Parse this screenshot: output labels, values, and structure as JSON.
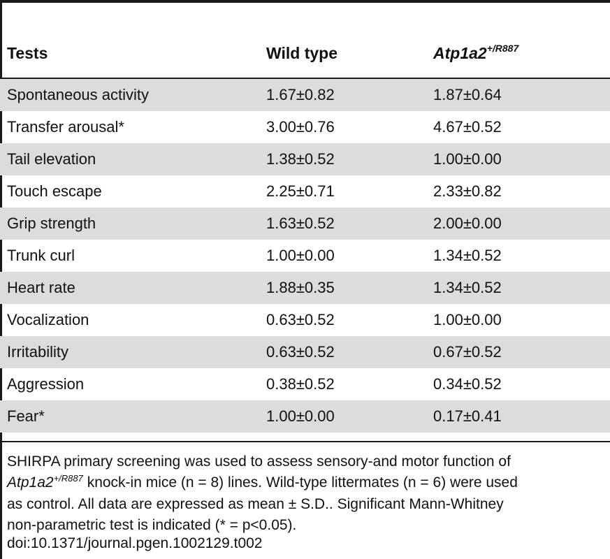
{
  "table": {
    "headers": {
      "tests": "Tests",
      "wild_type": "Wild type",
      "mutant_main": "Atp1a2",
      "mutant_sup": "+/R887"
    },
    "rows": [
      {
        "test": "Spontaneous activity",
        "wild_type": "1.67±0.82",
        "mutant": "1.87±0.64"
      },
      {
        "test": "Transfer arousal*",
        "wild_type": "3.00±0.76",
        "mutant": "4.67±0.52"
      },
      {
        "test": "Tail elevation",
        "wild_type": "1.38±0.52",
        "mutant": "1.00±0.00"
      },
      {
        "test": "Touch escape",
        "wild_type": "2.25±0.71",
        "mutant": "2.33±0.82"
      },
      {
        "test": "Grip strength",
        "wild_type": "1.63±0.52",
        "mutant": "2.00±0.00"
      },
      {
        "test": "Trunk curl",
        "wild_type": "1.00±0.00",
        "mutant": "1.34±0.52"
      },
      {
        "test": "Heart rate",
        "wild_type": "1.88±0.35",
        "mutant": "1.34±0.52"
      },
      {
        "test": "Vocalization",
        "wild_type": "0.63±0.52",
        "mutant": "1.00±0.00"
      },
      {
        "test": "Irritability",
        "wild_type": "0.63±0.52",
        "mutant": "0.67±0.52"
      },
      {
        "test": "Aggression",
        "wild_type": "0.38±0.52",
        "mutant": "0.34±0.52"
      },
      {
        "test": "Fear*",
        "wild_type": "1.00±0.00",
        "mutant": "0.17±0.41"
      }
    ]
  },
  "caption": {
    "line1": "SHIRPA primary screening was used to assess sensory-and motor function of",
    "line2_italic": "Atp1a2",
    "line2_sup": "+/R887",
    "line2_rest": " knock-in mice (n = 8) lines. Wild-type littermates (n = 6) were used",
    "line3": "as control. All data are expressed as mean ± S.D.. Significant Mann-Whitney",
    "line4": "non-parametric test is indicated (* = p<0.05).",
    "doi": "doi:10.1371/journal.pgen.1002129.t002"
  },
  "colors": {
    "rule": "#1a1a1a",
    "shade": "#dcdcdc"
  }
}
